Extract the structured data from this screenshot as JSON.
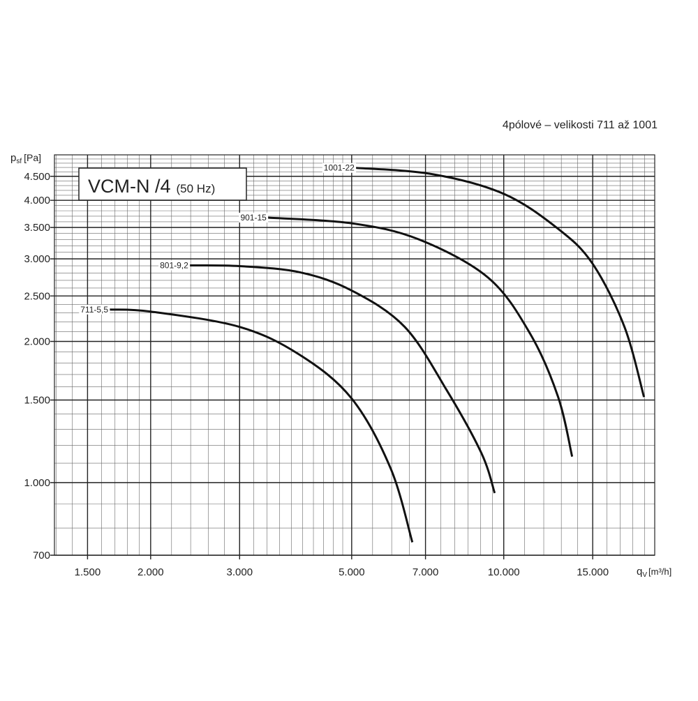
{
  "chart_data": {
    "type": "line",
    "title": "VCM-N /4",
    "subtitle": "(50 Hz)",
    "caption": "4pólové – velikosti 711 až 1001",
    "y_label_symbol": "p",
    "y_label_subscript": "sf",
    "y_label_unit": "[Pa]",
    "x_label_symbol": "q",
    "x_label_subscript": "V",
    "x_label_unit": "[m³/h]",
    "log_x": true,
    "log_y": true,
    "grid": true,
    "xlim": [
      1290,
      19900
    ],
    "ylim": [
      700,
      5000
    ],
    "xticks": [
      {
        "value": 1500,
        "label": "1.500"
      },
      {
        "value": 2000,
        "label": "2.000"
      },
      {
        "value": 3000,
        "label": "3.000"
      },
      {
        "value": 5000,
        "label": "5.000"
      },
      {
        "value": 7000,
        "label": "7.000"
      },
      {
        "value": 10000,
        "label": "10.000"
      },
      {
        "value": 15000,
        "label": "15.000"
      }
    ],
    "yticks": [
      700,
      {
        "value": 1000,
        "label": "1.000"
      },
      {
        "value": 1500,
        "label": "1.500"
      },
      {
        "value": 2000,
        "label": "2.000"
      },
      {
        "value": 2500,
        "label": "2.500"
      },
      {
        "value": 3000,
        "label": "3.000"
      },
      {
        "value": 3500,
        "label": "3.500"
      },
      {
        "value": 4000,
        "label": "4.000"
      },
      {
        "value": 4500,
        "label": "4.500"
      }
    ],
    "x_minor_grid": [
      1300,
      1400,
      1600,
      1700,
      1800,
      1900,
      2200,
      2400,
      2600,
      2800,
      3200,
      3400,
      3600,
      3800,
      4000,
      4200,
      4400,
      4600,
      4800,
      5500,
      6000,
      6500,
      7500,
      8000,
      8500,
      9000,
      9500,
      11000,
      12000,
      13000,
      14000,
      16000,
      17000,
      18000,
      19000
    ],
    "y_minor_grid": [
      800,
      900,
      1100,
      1200,
      1300,
      1400,
      1600,
      1700,
      1800,
      1900,
      2100,
      2200,
      2300,
      2400,
      2600,
      2700,
      2800,
      2900,
      3100,
      3200,
      3300,
      3400,
      3600,
      3700,
      3800,
      3900,
      4100,
      4200,
      4300,
      4400,
      4600,
      4700,
      4800,
      4900
    ],
    "series": [
      {
        "name": "711-5,5",
        "color": "#111111",
        "x": [
          1659,
          2000,
          3000,
          3951,
          5000,
          5974,
          6593
        ],
        "values": [
          2339,
          2316,
          2148,
          1871,
          1511,
          1071,
          746
        ]
      },
      {
        "name": "801-9,2",
        "color": "#111111",
        "x": [
          2390,
          3000,
          3951,
          5000,
          6368,
          7706,
          9034,
          9595
        ],
        "values": [
          2905,
          2895,
          2808,
          2568,
          2148,
          1576,
          1155,
          950
        ]
      },
      {
        "name": "901-15",
        "color": "#111111",
        "x": [
          3413,
          5000,
          6786,
          9324,
          11285,
          12814,
          13658
        ],
        "values": [
          3673,
          3573,
          3302,
          2733,
          2075,
          1522,
          1136
        ]
      },
      {
        "name": "1001-22",
        "color": "#111111",
        "x": [
          5096,
          7229,
          10000,
          12814,
          15000,
          17337,
          18950
        ],
        "values": [
          4690,
          4547,
          4129,
          3477,
          2927,
          2148,
          1522
        ]
      }
    ]
  }
}
